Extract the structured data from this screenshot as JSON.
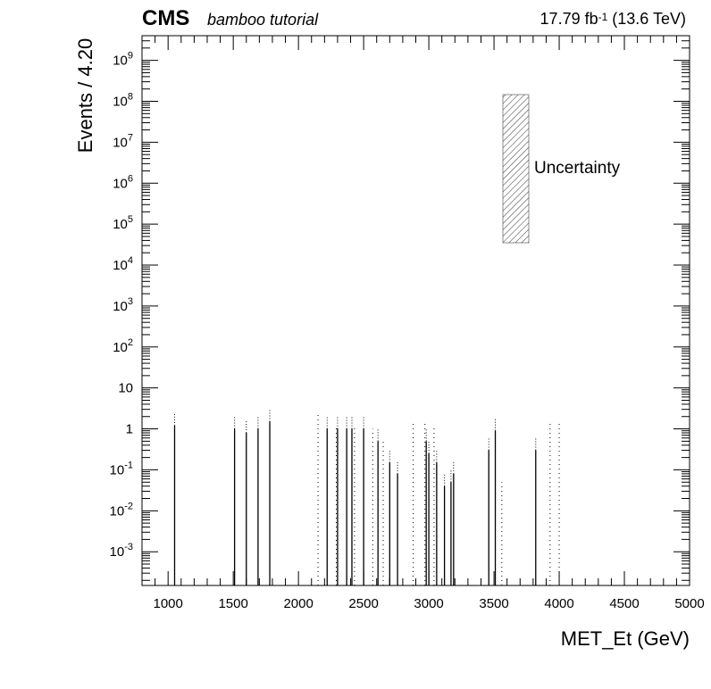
{
  "header": {
    "experiment": "CMS",
    "subtitle": "bamboo tutorial",
    "lumi_value": "17.79 fb",
    "lumi_exp": "-1",
    "energy": " (13.6 TeV)"
  },
  "chart_data": {
    "type": "bar",
    "xlabel": "MET_Et (GeV)",
    "ylabel": "Events / 4.20",
    "xlim": [
      800,
      5000
    ],
    "ylim": [
      0.00015,
      4000000000
    ],
    "log_y": true,
    "grid": false,
    "legend_position": "top-right",
    "legend": [
      {
        "name": "Uncertainty",
        "style": "hatched band"
      }
    ],
    "x_ticks": [
      1000,
      1500,
      2000,
      2500,
      3000,
      3500,
      4000,
      4500,
      5000
    ],
    "x_tick_labels": [
      "1000",
      "1500",
      "2000",
      "2500",
      "3000",
      "3500",
      "4000",
      "4500",
      "5000"
    ],
    "y_ticks": [
      0.001,
      0.01,
      0.1,
      1,
      10,
      100,
      1000,
      10000,
      100000,
      1000000,
      10000000,
      100000000,
      1000000000
    ],
    "series": [
      {
        "name": "Uncertainty",
        "points": [
          [
            1050,
            1.2
          ],
          [
            1510,
            1.0
          ],
          [
            1600,
            0.8
          ],
          [
            1690,
            1.0
          ],
          [
            1780,
            1.5
          ],
          [
            2220,
            1.0
          ],
          [
            2300,
            1.0
          ],
          [
            2370,
            1.0
          ],
          [
            2410,
            1.0
          ],
          [
            2500,
            1.0
          ],
          [
            2610,
            0.5
          ],
          [
            2700,
            0.15
          ],
          [
            2760,
            0.08
          ],
          [
            2980,
            0.5
          ],
          [
            3000,
            0.25
          ],
          [
            3060,
            0.15
          ],
          [
            3120,
            0.04
          ],
          [
            3170,
            0.05
          ],
          [
            3190,
            0.08
          ],
          [
            3460,
            0.3
          ],
          [
            3510,
            0.9
          ],
          [
            3820,
            0.3
          ]
        ],
        "uncertainty_points": [
          [
            2150,
            2.5
          ],
          [
            2290,
            1.2
          ],
          [
            2430,
            1.2
          ],
          [
            2570,
            1.0
          ],
          [
            2650,
            0.5
          ],
          [
            2880,
            1.5
          ],
          [
            2970,
            1.5
          ],
          [
            3040,
            1.2
          ],
          [
            3560,
            0.05
          ],
          [
            3930,
            1.5
          ],
          [
            4000,
            1.5
          ]
        ]
      }
    ]
  }
}
